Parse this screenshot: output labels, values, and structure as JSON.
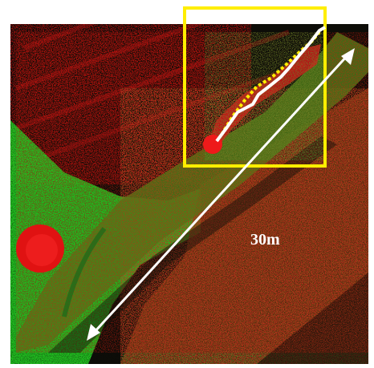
{
  "figure": {
    "scale_label": "30m",
    "colors": {
      "background": "#ffffff",
      "field_dark": "#0d0d08",
      "points_green": "#2bd42b",
      "points_red": "#e01212",
      "highlight_box": "#ffee00",
      "scale_arrow": "#ffffff",
      "dashed_path": "#ffee00",
      "solid_path": "#ffffff"
    }
  }
}
